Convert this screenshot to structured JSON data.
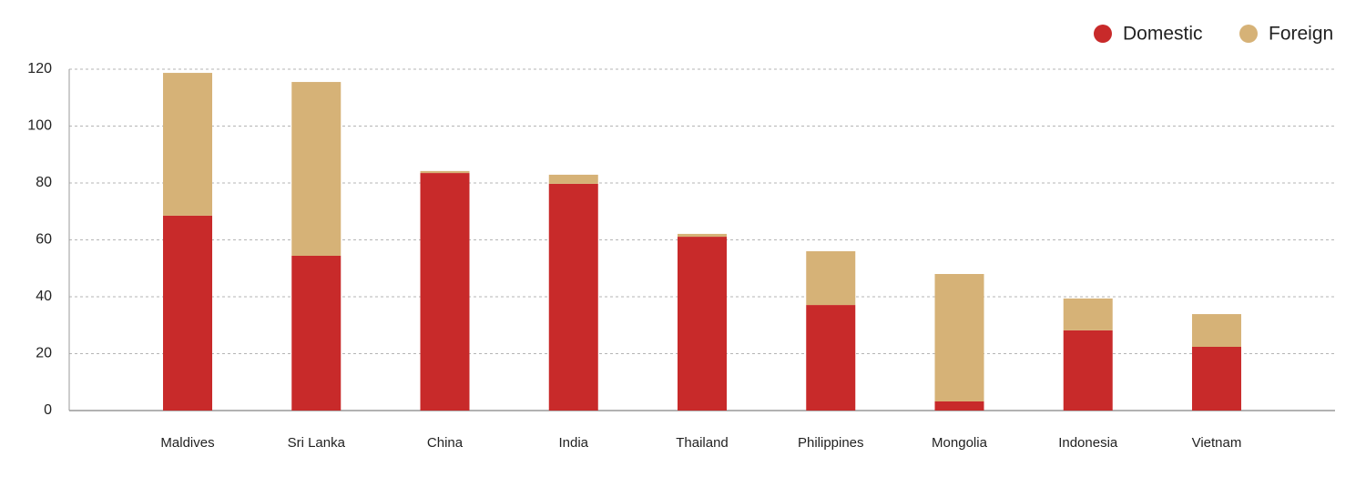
{
  "chart_data": {
    "type": "stacked_bar",
    "categories": [
      "Maldives",
      "Sri Lanka",
      "China",
      "India",
      "Thailand",
      "Philippines",
      "Mongolia",
      "Indonesia",
      "Vietnam"
    ],
    "series": [
      {
        "name": "Domestic",
        "color": "#c82a2a",
        "values": [
          68.5,
          54.4,
          83.5,
          79.7,
          61.1,
          37.1,
          3.2,
          28.2,
          22.4
        ]
      },
      {
        "name": "Foreign",
        "color": "#d6b277",
        "values": [
          50.2,
          61.1,
          0.7,
          3.2,
          1.0,
          18.9,
          44.8,
          11.2,
          11.5
        ]
      }
    ],
    "ylim": [
      0,
      120
    ],
    "yticks": [
      0,
      20,
      40,
      60,
      80,
      100,
      120
    ],
    "grid": true,
    "legend": "top-right"
  }
}
